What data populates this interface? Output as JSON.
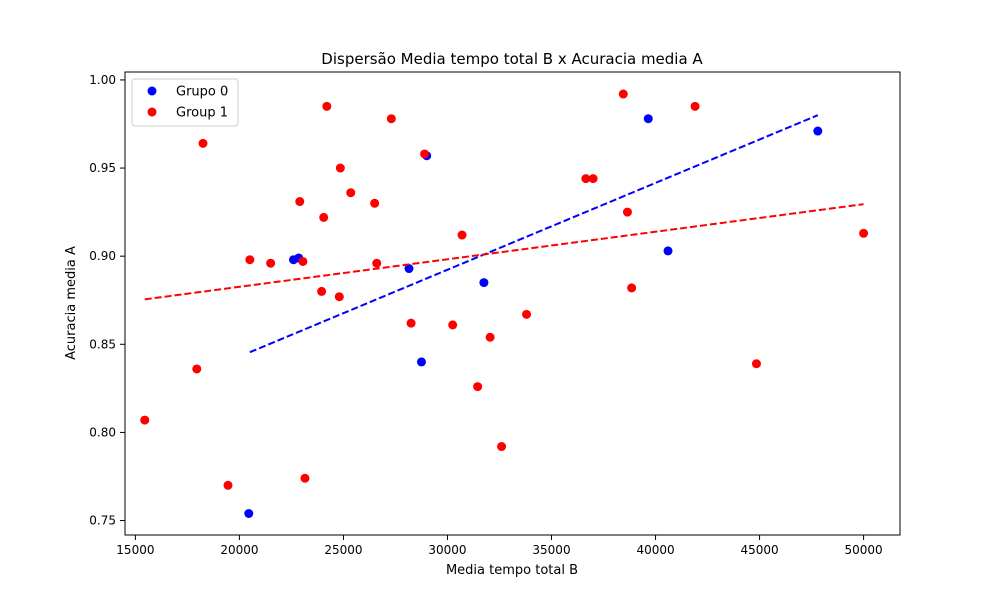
{
  "chart_data": {
    "type": "scatter",
    "title": "Dispersão Media tempo total B x Acuracia media A",
    "xlabel": "Media tempo total B",
    "ylabel": "Acuracia media A",
    "xlim": [
      14500,
      51750
    ],
    "ylim": [
      0.7418,
      1.0045
    ],
    "xticks": [
      15000,
      20000,
      25000,
      30000,
      35000,
      40000,
      45000,
      50000
    ],
    "xtick_labels": [
      "15000",
      "20000",
      "25000",
      "30000",
      "35000",
      "40000",
      "45000",
      "50000"
    ],
    "yticks": [
      0.75,
      0.8,
      0.85,
      0.9,
      0.95,
      1.0
    ],
    "ytick_labels": [
      "0.75",
      "0.80",
      "0.85",
      "0.90",
      "0.95",
      "1.00"
    ],
    "grid": false,
    "legend_position": "top-left",
    "series": [
      {
        "name": "Grupo 0",
        "color": "#0000ff",
        "points": [
          [
            20450,
            0.754
          ],
          [
            22600,
            0.898
          ],
          [
            22850,
            0.899
          ],
          [
            28150,
            0.893
          ],
          [
            28750,
            0.84
          ],
          [
            29000,
            0.957
          ],
          [
            31750,
            0.885
          ],
          [
            39650,
            0.978
          ],
          [
            40600,
            0.903
          ],
          [
            47800,
            0.971
          ]
        ],
        "trendline": {
          "x": [
            20500,
            47800
          ],
          "y": [
            0.8455,
            0.98
          ],
          "style": "dashed"
        }
      },
      {
        "name": "Group 1",
        "color": "#ff0000",
        "points": [
          [
            15450,
            0.807
          ],
          [
            17950,
            0.836
          ],
          [
            18250,
            0.964
          ],
          [
            19450,
            0.77
          ],
          [
            20500,
            0.898
          ],
          [
            21500,
            0.896
          ],
          [
            22900,
            0.931
          ],
          [
            23050,
            0.897
          ],
          [
            23150,
            0.774
          ],
          [
            23950,
            0.88
          ],
          [
            24050,
            0.922
          ],
          [
            24200,
            0.985
          ],
          [
            24800,
            0.877
          ],
          [
            24850,
            0.95
          ],
          [
            25350,
            0.936
          ],
          [
            26500,
            0.93
          ],
          [
            26600,
            0.896
          ],
          [
            27300,
            0.978
          ],
          [
            28250,
            0.862
          ],
          [
            28900,
            0.958
          ],
          [
            30250,
            0.861
          ],
          [
            30700,
            0.912
          ],
          [
            31450,
            0.826
          ],
          [
            32050,
            0.854
          ],
          [
            32600,
            0.792
          ],
          [
            33800,
            0.867
          ],
          [
            36650,
            0.944
          ],
          [
            37000,
            0.944
          ],
          [
            38450,
            0.992
          ],
          [
            38650,
            0.925
          ],
          [
            38850,
            0.882
          ],
          [
            41900,
            0.985
          ],
          [
            44850,
            0.839
          ],
          [
            50000,
            0.913
          ]
        ],
        "trendline": {
          "x": [
            15450,
            50000
          ],
          "y": [
            0.8755,
            0.9295
          ],
          "style": "dashed"
        }
      }
    ]
  }
}
